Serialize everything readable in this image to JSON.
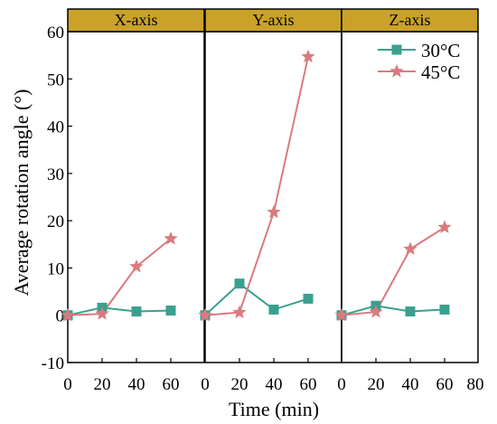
{
  "chart_data": {
    "type": "line",
    "xlabel": "Time (min)",
    "ylabel": "Average rotation angle (°)",
    "ylim": [
      -10,
      60
    ],
    "yticks": [
      "-10",
      "0",
      "10",
      "20",
      "30",
      "40",
      "50",
      "60"
    ],
    "xlim": [
      0,
      80
    ],
    "xticks": [
      "0",
      "20",
      "40",
      "60",
      "80"
    ],
    "legend_position": "top-right",
    "strip_color": "#c9a227",
    "panels": [
      {
        "strip_label": "X-axis",
        "x": [
          0,
          20,
          40,
          60
        ],
        "series": [
          {
            "name": "30°C",
            "values": [
              0,
              1.6,
              0.8,
              1.0
            ]
          },
          {
            "name": "45°C",
            "values": [
              0,
              0.3,
              10.3,
              16.2
            ]
          }
        ]
      },
      {
        "strip_label": "Y-axis",
        "x": [
          0,
          20,
          40,
          60
        ],
        "series": [
          {
            "name": "30°C",
            "values": [
              0,
              6.7,
              1.2,
              3.5
            ]
          },
          {
            "name": "45°C",
            "values": [
              0,
              0.6,
              21.8,
              54.7
            ]
          }
        ]
      },
      {
        "strip_label": "Z-axis",
        "x": [
          0,
          20,
          40,
          60
        ],
        "series": [
          {
            "name": "30°C",
            "values": [
              0,
              2.0,
              0.8,
              1.2
            ]
          },
          {
            "name": "45°C",
            "values": [
              0,
              0.7,
              14.0,
              18.6
            ]
          }
        ]
      }
    ],
    "series_styles": [
      {
        "name": "30°C",
        "color": "#3aa08e",
        "marker": "square"
      },
      {
        "name": "45°C",
        "color": "#d97a7f",
        "marker": "star"
      }
    ]
  }
}
